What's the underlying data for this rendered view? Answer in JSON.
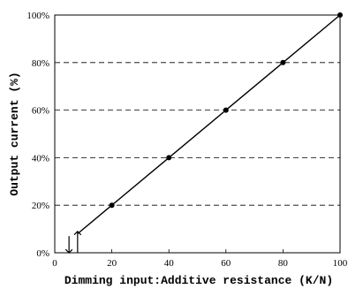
{
  "chart_data": {
    "type": "line",
    "title": "",
    "xlabel": "Dimming input:Additive resistance (K/N)",
    "ylabel": "Output current (%)",
    "xlim": [
      0,
      100
    ],
    "ylim": [
      0,
      100
    ],
    "x_ticks": [
      "0",
      "20",
      "40",
      "60",
      "80",
      "100"
    ],
    "y_ticks": [
      "0%",
      "20%",
      "40%",
      "60%",
      "80%",
      "100%"
    ],
    "grid": "horizontal dashed",
    "series": [
      {
        "x": [
          8,
          20,
          40,
          60,
          80,
          100
        ],
        "y": [
          8,
          20,
          40,
          60,
          80,
          100
        ],
        "markers": [
          20,
          40,
          60,
          80,
          100
        ]
      }
    ],
    "annotations": [
      {
        "type": "arrow",
        "direction": "down",
        "x": 5,
        "y_from": 7,
        "y_to": 0
      },
      {
        "type": "arrow",
        "direction": "up",
        "x": 8,
        "y_from": 0,
        "y_to": 9
      }
    ],
    "colors": {
      "line": "#000000",
      "grid": "#000000",
      "background": "#ffffff"
    }
  }
}
